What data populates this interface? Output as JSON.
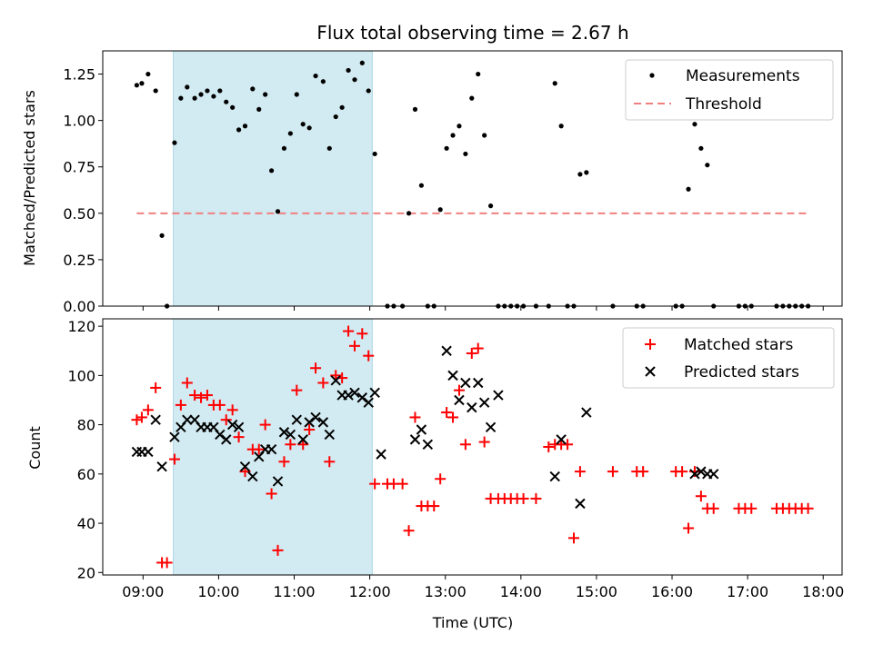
{
  "title": "Flux total observing time = 2.67 h",
  "xlabel": "Time (UTC)",
  "xticks": [
    "09:00",
    "10:00",
    "11:00",
    "12:00",
    "13:00",
    "14:00",
    "15:00",
    "16:00",
    "17:00",
    "18:00"
  ],
  "colors": {
    "matched": "#ff0000",
    "predicted": "#000000",
    "threshold": "#f08080",
    "shade": "#add8e6"
  },
  "chart_data": [
    {
      "type": "scatter",
      "ylabel": "Matched/Predicted stars",
      "xlim": [
        "08:28",
        "18:15"
      ],
      "ylim": [
        0,
        1.375
      ],
      "yticks": [
        "0.00",
        "0.25",
        "0.50",
        "0.75",
        "1.00",
        "1.25"
      ],
      "shaded_span": [
        "09:24",
        "12:02"
      ],
      "legend_loc": "upper right",
      "legend": [
        "Measurements",
        "Threshold"
      ],
      "threshold": {
        "y": 0.5,
        "x": [
          "08:55",
          "17:50"
        ]
      },
      "series": [
        {
          "name": "Measurements",
          "points": [
            [
              "08:55",
              1.19
            ],
            [
              "08:59",
              1.2
            ],
            [
              "09:04",
              1.25
            ],
            [
              "09:10",
              1.16
            ],
            [
              "09:15",
              0.38
            ],
            [
              "09:19",
              0.0
            ],
            [
              "09:25",
              0.88
            ],
            [
              "09:30",
              1.12
            ],
            [
              "09:35",
              1.18
            ],
            [
              "09:41",
              1.12
            ],
            [
              "09:46",
              1.14
            ],
            [
              "09:51",
              1.16
            ],
            [
              "09:56",
              1.13
            ],
            [
              "10:01",
              1.16
            ],
            [
              "10:06",
              1.1
            ],
            [
              "10:11",
              1.07
            ],
            [
              "10:16",
              0.95
            ],
            [
              "10:21",
              0.97
            ],
            [
              "10:27",
              1.17
            ],
            [
              "10:32",
              1.06
            ],
            [
              "10:37",
              1.14
            ],
            [
              "10:42",
              0.73
            ],
            [
              "10:47",
              0.51
            ],
            [
              "10:52",
              0.85
            ],
            [
              "10:57",
              0.93
            ],
            [
              "11:02",
              1.14
            ],
            [
              "11:07",
              0.98
            ],
            [
              "11:12",
              0.96
            ],
            [
              "11:17",
              1.24
            ],
            [
              "11:23",
              1.21
            ],
            [
              "11:28",
              0.85
            ],
            [
              "11:33",
              1.02
            ],
            [
              "11:38",
              1.07
            ],
            [
              "11:43",
              1.27
            ],
            [
              "11:48",
              1.22
            ],
            [
              "11:54",
              1.31
            ],
            [
              "11:59",
              1.16
            ],
            [
              "12:04",
              0.82
            ],
            [
              "12:14",
              0.0
            ],
            [
              "12:19",
              0.0
            ],
            [
              "12:26",
              0.0
            ],
            [
              "12:31",
              0.5
            ],
            [
              "12:36",
              1.06
            ],
            [
              "12:41",
              0.65
            ],
            [
              "12:46",
              0.0
            ],
            [
              "12:51",
              0.0
            ],
            [
              "12:56",
              0.52
            ],
            [
              "13:01",
              0.85
            ],
            [
              "13:06",
              0.92
            ],
            [
              "13:11",
              0.97
            ],
            [
              "13:16",
              0.82
            ],
            [
              "13:21",
              1.12
            ],
            [
              "13:26",
              1.25
            ],
            [
              "13:31",
              0.92
            ],
            [
              "13:36",
              0.54
            ],
            [
              "13:42",
              0.0
            ],
            [
              "13:47",
              0.0
            ],
            [
              "13:52",
              0.0
            ],
            [
              "13:57",
              0.0
            ],
            [
              "14:02",
              0.0
            ],
            [
              "14:12",
              0.0
            ],
            [
              "14:22",
              0.0
            ],
            [
              "14:27",
              1.2
            ],
            [
              "14:32",
              0.97
            ],
            [
              "14:37",
              0.0
            ],
            [
              "14:42",
              0.0
            ],
            [
              "14:47",
              0.71
            ],
            [
              "14:52",
              0.72
            ],
            [
              "15:13",
              0.0
            ],
            [
              "15:32",
              0.0
            ],
            [
              "15:37",
              0.0
            ],
            [
              "16:03",
              0.0
            ],
            [
              "16:08",
              0.0
            ],
            [
              "16:13",
              0.63
            ],
            [
              "16:18",
              0.98
            ],
            [
              "16:23",
              0.85
            ],
            [
              "16:28",
              0.76
            ],
            [
              "16:33",
              0.0
            ],
            [
              "16:53",
              0.0
            ],
            [
              "16:58",
              0.0
            ],
            [
              "17:03",
              0.0
            ],
            [
              "17:23",
              0.0
            ],
            [
              "17:28",
              0.0
            ],
            [
              "17:33",
              0.0
            ],
            [
              "17:38",
              0.0
            ],
            [
              "17:43",
              0.0
            ],
            [
              "17:48",
              0.0
            ]
          ]
        }
      ]
    },
    {
      "type": "scatter",
      "ylabel": "Count",
      "xlim": [
        "08:28",
        "18:15"
      ],
      "ylim": [
        19,
        123
      ],
      "yticks": [
        "20",
        "40",
        "60",
        "80",
        "100",
        "120"
      ],
      "shaded_span": [
        "09:24",
        "12:02"
      ],
      "legend_loc": "upper right",
      "legend": [
        "Matched stars",
        "Predicted stars"
      ],
      "series": [
        {
          "name": "Matched stars",
          "marker": "plus",
          "points": [
            [
              "08:55",
              82
            ],
            [
              "08:59",
              83
            ],
            [
              "09:04",
              86
            ],
            [
              "09:10",
              95
            ],
            [
              "09:15",
              24
            ],
            [
              "09:19",
              24
            ],
            [
              "09:25",
              66
            ],
            [
              "09:30",
              88
            ],
            [
              "09:35",
              97
            ],
            [
              "09:41",
              92
            ],
            [
              "09:46",
              91
            ],
            [
              "09:51",
              92
            ],
            [
              "09:56",
              88
            ],
            [
              "10:01",
              88
            ],
            [
              "10:06",
              82
            ],
            [
              "10:11",
              86
            ],
            [
              "10:16",
              75
            ],
            [
              "10:21",
              61
            ],
            [
              "10:27",
              70
            ],
            [
              "10:32",
              70
            ],
            [
              "10:37",
              80
            ],
            [
              "10:42",
              52
            ],
            [
              "10:47",
              29
            ],
            [
              "10:52",
              65
            ],
            [
              "10:57",
              72
            ],
            [
              "11:02",
              94
            ],
            [
              "11:07",
              72
            ],
            [
              "11:12",
              78
            ],
            [
              "11:17",
              103
            ],
            [
              "11:23",
              97
            ],
            [
              "11:28",
              65
            ],
            [
              "11:33",
              100
            ],
            [
              "11:38",
              99
            ],
            [
              "11:43",
              118
            ],
            [
              "11:48",
              112
            ],
            [
              "11:54",
              117
            ],
            [
              "11:59",
              108
            ],
            [
              "12:04",
              56
            ],
            [
              "12:14",
              56
            ],
            [
              "12:19",
              56
            ],
            [
              "12:26",
              56
            ],
            [
              "12:31",
              37
            ],
            [
              "12:36",
              83
            ],
            [
              "12:41",
              47
            ],
            [
              "12:46",
              47
            ],
            [
              "12:51",
              47
            ],
            [
              "12:56",
              58
            ],
            [
              "13:01",
              85
            ],
            [
              "13:06",
              83
            ],
            [
              "13:11",
              94
            ],
            [
              "13:16",
              72
            ],
            [
              "13:21",
              109
            ],
            [
              "13:26",
              111
            ],
            [
              "13:31",
              73
            ],
            [
              "13:36",
              50
            ],
            [
              "13:42",
              50
            ],
            [
              "13:47",
              50
            ],
            [
              "13:52",
              50
            ],
            [
              "13:57",
              50
            ],
            [
              "14:02",
              50
            ],
            [
              "14:12",
              50
            ],
            [
              "14:22",
              71
            ],
            [
              "14:27",
              72
            ],
            [
              "14:32",
              72
            ],
            [
              "14:37",
              72
            ],
            [
              "14:42",
              34
            ],
            [
              "14:47",
              61
            ],
            [
              "15:13",
              61
            ],
            [
              "15:32",
              61
            ],
            [
              "15:37",
              61
            ],
            [
              "16:03",
              61
            ],
            [
              "16:08",
              61
            ],
            [
              "16:13",
              38
            ],
            [
              "16:18",
              61
            ],
            [
              "16:23",
              51
            ],
            [
              "16:28",
              46
            ],
            [
              "16:33",
              46
            ],
            [
              "16:53",
              46
            ],
            [
              "16:58",
              46
            ],
            [
              "17:03",
              46
            ],
            [
              "17:23",
              46
            ],
            [
              "17:28",
              46
            ],
            [
              "17:33",
              46
            ],
            [
              "17:38",
              46
            ],
            [
              "17:43",
              46
            ],
            [
              "17:48",
              46
            ]
          ]
        },
        {
          "name": "Predicted stars",
          "marker": "x",
          "points": [
            [
              "08:55",
              69
            ],
            [
              "08:59",
              69
            ],
            [
              "09:04",
              69
            ],
            [
              "09:10",
              82
            ],
            [
              "09:15",
              63
            ],
            [
              "09:25",
              75
            ],
            [
              "09:30",
              79
            ],
            [
              "09:35",
              82
            ],
            [
              "09:41",
              82
            ],
            [
              "09:46",
              79
            ],
            [
              "09:51",
              79
            ],
            [
              "09:56",
              79
            ],
            [
              "10:01",
              76
            ],
            [
              "10:06",
              74
            ],
            [
              "10:11",
              80
            ],
            [
              "10:16",
              79
            ],
            [
              "10:21",
              63
            ],
            [
              "10:27",
              59
            ],
            [
              "10:32",
              67
            ],
            [
              "10:37",
              70
            ],
            [
              "10:42",
              70
            ],
            [
              "10:47",
              57
            ],
            [
              "10:52",
              77
            ],
            [
              "10:57",
              76
            ],
            [
              "11:02",
              82
            ],
            [
              "11:07",
              74
            ],
            [
              "11:12",
              81
            ],
            [
              "11:17",
              83
            ],
            [
              "11:23",
              81
            ],
            [
              "11:28",
              76
            ],
            [
              "11:33",
              98
            ],
            [
              "11:38",
              92
            ],
            [
              "11:43",
              92
            ],
            [
              "11:48",
              93
            ],
            [
              "11:54",
              91
            ],
            [
              "11:59",
              89
            ],
            [
              "12:04",
              93
            ],
            [
              "12:09",
              68
            ],
            [
              "12:36",
              74
            ],
            [
              "12:41",
              78
            ],
            [
              "12:46",
              72
            ],
            [
              "13:01",
              110
            ],
            [
              "13:06",
              100
            ],
            [
              "13:11",
              90
            ],
            [
              "13:16",
              97
            ],
            [
              "13:21",
              87
            ],
            [
              "13:26",
              97
            ],
            [
              "13:31",
              89
            ],
            [
              "13:36",
              79
            ],
            [
              "13:42",
              92
            ],
            [
              "14:27",
              59
            ],
            [
              "14:32",
              74
            ],
            [
              "14:47",
              48
            ],
            [
              "14:52",
              85
            ],
            [
              "16:18",
              60
            ],
            [
              "16:23",
              61
            ],
            [
              "16:28",
              60
            ],
            [
              "16:33",
              60
            ]
          ]
        }
      ]
    }
  ]
}
